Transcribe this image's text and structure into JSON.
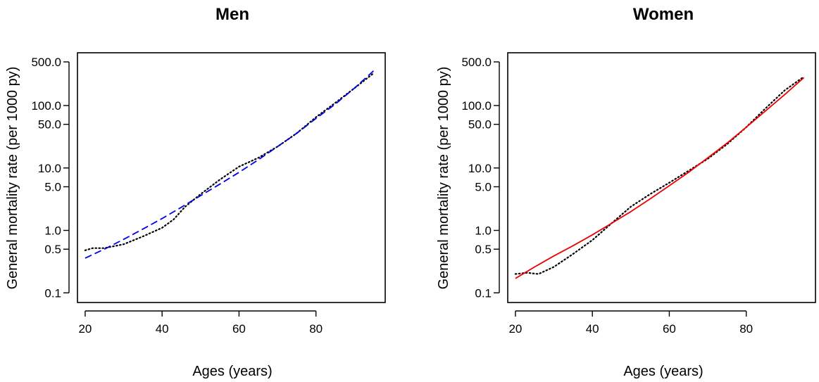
{
  "chart_data": [
    {
      "type": "line",
      "title": "Men",
      "xlabel": "Ages (years)",
      "ylabel": "General mortality rate (per 1000 py)",
      "xlim": [
        18,
        98
      ],
      "ylim": [
        0.07,
        700
      ],
      "y_scale": "log",
      "x_ticks": [
        20,
        40,
        60,
        80
      ],
      "y_ticks": [
        {
          "value": 0.1,
          "label": "0.1"
        },
        {
          "value": 0.5,
          "label": "0.5"
        },
        {
          "value": 1,
          "label": "1.0"
        },
        {
          "value": 5,
          "label": "5.0"
        },
        {
          "value": 10,
          "label": "10.0"
        },
        {
          "value": 50,
          "label": "50.0"
        },
        {
          "value": 100,
          "label": "100.0"
        },
        {
          "value": 500,
          "label": "500.0"
        }
      ],
      "grid": false,
      "series": [
        {
          "style": "dotted",
          "color": "#000000",
          "x": [
            20,
            22,
            25,
            30,
            35,
            40,
            43,
            46,
            50,
            55,
            60,
            65,
            70,
            75,
            80,
            85,
            90,
            95
          ],
          "y": [
            0.48,
            0.52,
            0.52,
            0.6,
            0.8,
            1.1,
            1.5,
            2.4,
            3.8,
            6.5,
            10.5,
            14.5,
            22,
            36,
            65,
            110,
            190,
            330
          ]
        },
        {
          "style": "dashed",
          "color": "#0000ee",
          "x": [
            20,
            25,
            30,
            35,
            40,
            45,
            50,
            55,
            60,
            65,
            70,
            75,
            80,
            85,
            90,
            95
          ],
          "y": [
            0.36,
            0.5,
            0.72,
            1.05,
            1.55,
            2.35,
            3.6,
            5.5,
            8.5,
            13.5,
            22,
            36,
            62,
            105,
            190,
            360
          ]
        }
      ]
    },
    {
      "type": "line",
      "title": "Women",
      "xlabel": "Ages (years)",
      "ylabel": "General mortality rate (per 1000 py)",
      "xlim": [
        18,
        98
      ],
      "ylim": [
        0.07,
        700
      ],
      "y_scale": "log",
      "x_ticks": [
        20,
        40,
        60,
        80
      ],
      "y_ticks": [
        {
          "value": 0.1,
          "label": "0.1"
        },
        {
          "value": 0.5,
          "label": "0.5"
        },
        {
          "value": 1,
          "label": "1.0"
        },
        {
          "value": 5,
          "label": "5.0"
        },
        {
          "value": 10,
          "label": "10.0"
        },
        {
          "value": 50,
          "label": "50.0"
        },
        {
          "value": 100,
          "label": "100.0"
        },
        {
          "value": 500,
          "label": "500.0"
        }
      ],
      "grid": false,
      "series": [
        {
          "style": "dotted",
          "color": "#000000",
          "x": [
            20,
            23,
            26,
            30,
            35,
            40,
            45,
            50,
            55,
            60,
            65,
            70,
            75,
            80,
            85,
            90,
            95
          ],
          "y": [
            0.2,
            0.21,
            0.2,
            0.26,
            0.42,
            0.7,
            1.3,
            2.4,
            3.8,
            5.8,
            9.0,
            14,
            24,
            45,
            90,
            175,
            290
          ]
        },
        {
          "style": "solid",
          "color": "#ee0000",
          "x": [
            20,
            25,
            30,
            35,
            40,
            45,
            50,
            55,
            60,
            65,
            70,
            75,
            80,
            85,
            90,
            95
          ],
          "y": [
            0.17,
            0.26,
            0.39,
            0.57,
            0.85,
            1.3,
            2.0,
            3.2,
            5.2,
            8.5,
            14.5,
            25,
            45,
            82,
            150,
            280
          ]
        }
      ]
    }
  ]
}
